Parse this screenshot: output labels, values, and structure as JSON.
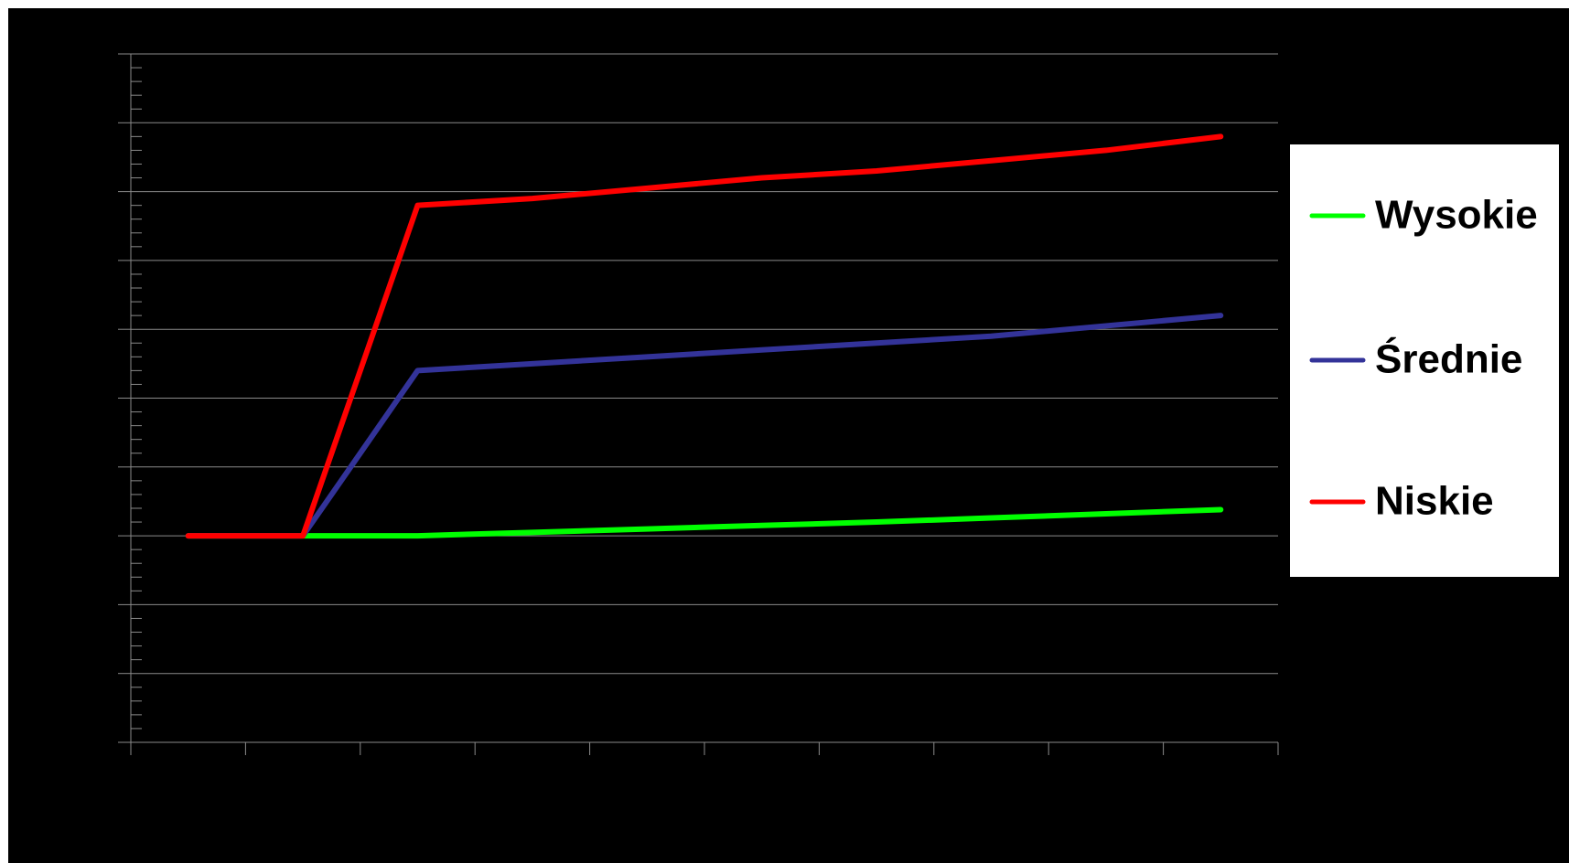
{
  "chart_data": {
    "type": "line",
    "categories": [
      null,
      null,
      null,
      null,
      null,
      null,
      null,
      null,
      null,
      null
    ],
    "series": [
      {
        "name": "Wysokie",
        "color": "#00ff00",
        "values": [
          0,
          0,
          0,
          0.05,
          0.1,
          0.15,
          0.2,
          0.26,
          0.32,
          0.38
        ]
      },
      {
        "name": "Średnie",
        "color": "#333399",
        "values": [
          0,
          0,
          2.4,
          2.5,
          2.6,
          2.7,
          2.8,
          2.9,
          3.05,
          3.2
        ]
      },
      {
        "name": "Niskie",
        "color": "#ff0000",
        "values": [
          0,
          0,
          4.8,
          4.9,
          5.05,
          5.2,
          5.3,
          5.45,
          5.6,
          5.8
        ]
      }
    ],
    "ylim": [
      -3,
      7
    ],
    "yticks": [
      -3,
      -2,
      -1,
      0,
      1,
      2,
      3,
      4,
      5,
      6,
      7
    ],
    "grid": true
  }
}
